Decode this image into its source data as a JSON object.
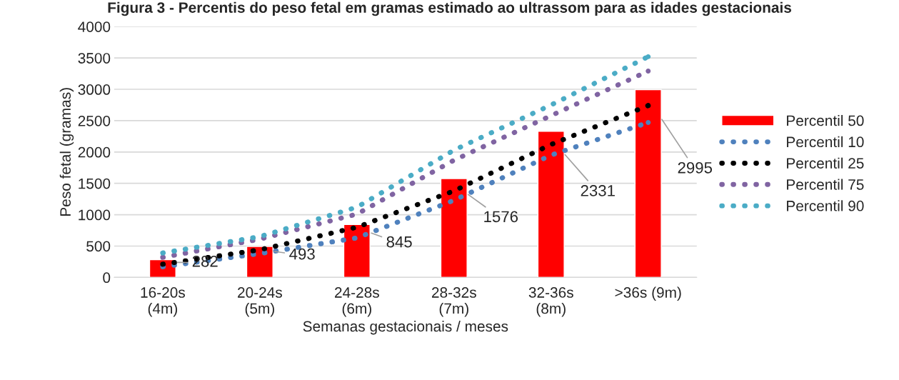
{
  "chart_data": {
    "type": "bar",
    "title": "Figura 3 - Percentis do peso fetal em gramas estimado ao ultrassom para as idades gestacionais",
    "xlabel": "Semanas gestacionais / meses",
    "ylabel": "Peso fetal (gramas)",
    "categories": [
      "16-20s\n(4m)",
      "20-24s\n(5m)",
      "24-28s\n(6m)",
      "28-32s\n(7m)",
      "32-36s\n(8m)",
      ">36s (9m)"
    ],
    "series": [
      {
        "name": "Percentil 50",
        "color": "#ff0000",
        "values": [
          282,
          493,
          845,
          1576,
          2331,
          2995
        ],
        "data_labels": true
      },
      {
        "name": "Percentil 10",
        "type": "line",
        "color": "#4f81bd",
        "values": [
          170,
          380,
          630,
          1230,
          1950,
          2470
        ],
        "line_style": "dotted"
      },
      {
        "name": "Percentil 25",
        "type": "line",
        "color": "#000000",
        "values": [
          210,
          440,
          800,
          1380,
          2120,
          2740
        ],
        "line_style": "dotted"
      },
      {
        "name": "Percentil 75",
        "type": "line",
        "color": "#8064a2",
        "values": [
          320,
          610,
          1010,
          1870,
          2580,
          3290
        ],
        "line_style": "dotted"
      },
      {
        "name": "Percentil 90",
        "type": "line",
        "color": "#4bacc6",
        "values": [
          390,
          650,
          1120,
          2030,
          2750,
          3520
        ],
        "line_style": "dotted"
      }
    ],
    "ylim": [
      0,
      4000
    ],
    "yticks": [
      0,
      500,
      1000,
      1500,
      2000,
      2500,
      3000,
      3500,
      4000
    ],
    "grid": "y",
    "legend": "right"
  }
}
